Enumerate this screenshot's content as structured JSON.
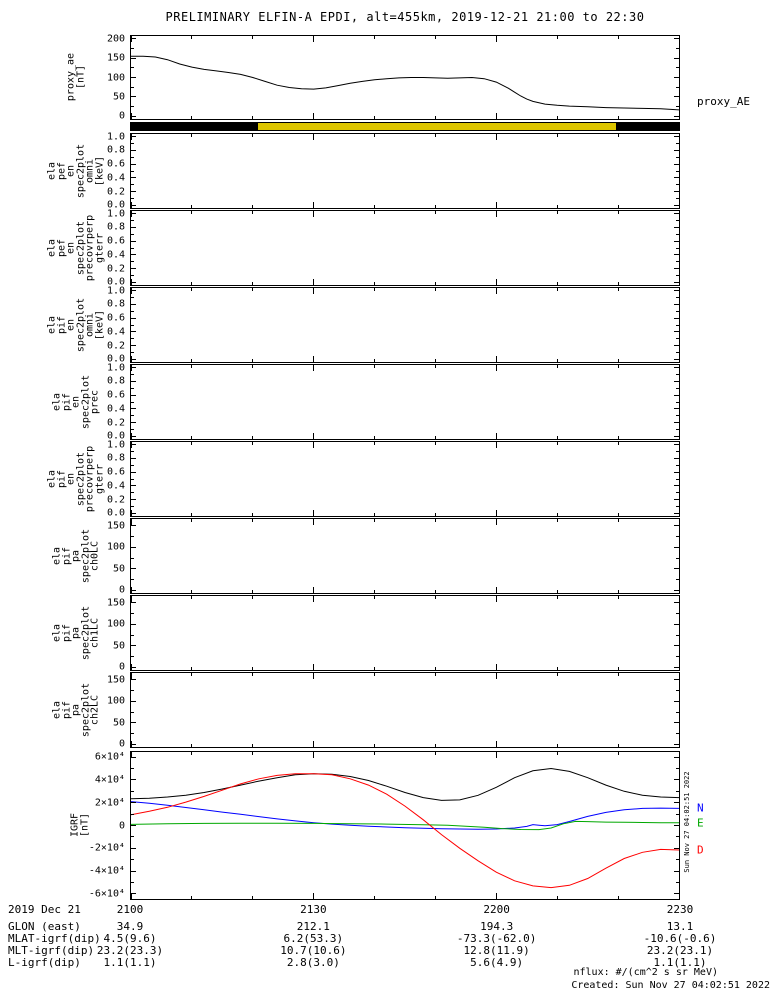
{
  "title": "PRELIMINARY ELFIN-A EPDI, alt=455km, 2019-12-21 21:00 to 22:30",
  "side_timestamp": "Sun Nov 27 04:02:51 2022",
  "colors": {
    "background": "#ffffff",
    "axis": "#000000",
    "survey_yellow": "#ddc500",
    "survey_black": "#000000",
    "proxy_line": "#000000",
    "igrf_total": "#000000",
    "igrf_n": "#0000ff",
    "igrf_e": "#00a800",
    "igrf_d": "#ff0000"
  },
  "xaxis": {
    "span_minutes": 90,
    "ticks": [
      {
        "label": "2100",
        "t": 0
      },
      {
        "label": "2130",
        "t": 30
      },
      {
        "label": "2200",
        "t": 60
      },
      {
        "label": "2230",
        "t": 90
      }
    ],
    "minor_t": [
      10,
      20,
      40,
      50,
      70,
      80
    ]
  },
  "panels": [
    {
      "name": "proxy_ae",
      "ylabel": "proxy_ae\n[nT]",
      "right_label": "proxy_AE",
      "yticks": [
        {
          "label": "200",
          "f": 0.965
        },
        {
          "label": "150",
          "f": 0.7325
        },
        {
          "label": "100",
          "f": 0.5
        },
        {
          "label": "50",
          "f": 0.2675
        },
        {
          "label": "0",
          "f": 0.035
        }
      ],
      "yminor": [
        0.849,
        0.616,
        0.384,
        0.151
      ]
    },
    {
      "name": "ela_pef_en_spec2plot_omni",
      "ylabel": "ela\npef\nen\nspec2plot\nomni\n[keV]",
      "yticks": [
        {
          "label": "1.0",
          "f": 0.965
        },
        {
          "label": "0.8",
          "f": 0.779
        },
        {
          "label": "0.6",
          "f": 0.593
        },
        {
          "label": "0.4",
          "f": 0.407
        },
        {
          "label": "0.2",
          "f": 0.221
        },
        {
          "label": "0.0",
          "f": 0.035
        }
      ],
      "yminor": [
        0.872,
        0.686,
        0.5,
        0.314,
        0.128
      ]
    },
    {
      "name": "ela_pef_en_spec2plot_precovrperp_gterr",
      "ylabel": "ela\npef\nen\nspec2plot\nprecovrperp\ngterr",
      "yticks": [
        {
          "label": "1.0",
          "f": 0.965
        },
        {
          "label": "0.8",
          "f": 0.779
        },
        {
          "label": "0.6",
          "f": 0.593
        },
        {
          "label": "0.4",
          "f": 0.407
        },
        {
          "label": "0.2",
          "f": 0.221
        },
        {
          "label": "0.0",
          "f": 0.035
        }
      ],
      "yminor": [
        0.872,
        0.686,
        0.5,
        0.314,
        0.128
      ]
    },
    {
      "name": "ela_pif_en_spec2plot_omni",
      "ylabel": "ela\npif\nen\nspec2plot\nomni\n[keV]",
      "yticks": [
        {
          "label": "1.0",
          "f": 0.965
        },
        {
          "label": "0.8",
          "f": 0.779
        },
        {
          "label": "0.6",
          "f": 0.593
        },
        {
          "label": "0.4",
          "f": 0.407
        },
        {
          "label": "0.2",
          "f": 0.221
        },
        {
          "label": "0.0",
          "f": 0.035
        }
      ],
      "yminor": [
        0.872,
        0.686,
        0.5,
        0.314,
        0.128
      ]
    },
    {
      "name": "ela_pif_en_spec2plot_prec",
      "ylabel": "ela\npif\nen\nspec2plot\nprec",
      "yticks": [
        {
          "label": "1.0",
          "f": 0.965
        },
        {
          "label": "0.8",
          "f": 0.779
        },
        {
          "label": "0.6",
          "f": 0.593
        },
        {
          "label": "0.4",
          "f": 0.407
        },
        {
          "label": "0.2",
          "f": 0.221
        },
        {
          "label": "0.0",
          "f": 0.035
        }
      ],
      "yminor": [
        0.872,
        0.686,
        0.5,
        0.314,
        0.128
      ]
    },
    {
      "name": "ela_pif_en_spec2plot_precovrperp_gterr",
      "ylabel": "ela\npif\nen\nspec2plot\nprecovrperp\ngterr",
      "yticks": [
        {
          "label": "1.0",
          "f": 0.965
        },
        {
          "label": "0.8",
          "f": 0.779
        },
        {
          "label": "0.6",
          "f": 0.593
        },
        {
          "label": "0.4",
          "f": 0.407
        },
        {
          "label": "0.2",
          "f": 0.221
        },
        {
          "label": "0.0",
          "f": 0.035
        }
      ],
      "yminor": [
        0.872,
        0.686,
        0.5,
        0.314,
        0.128
      ]
    },
    {
      "name": "ela_pif_pa_spec2plot_ch0LC",
      "ylabel": "ela\npif\npa\nspec2plot\nch0LC",
      "yticks": [
        {
          "label": "150",
          "f": 0.9068
        },
        {
          "label": "100",
          "f": 0.616
        },
        {
          "label": "50",
          "f": 0.3256
        },
        {
          "label": "0",
          "f": 0.035
        }
      ],
      "yminor": [
        0.762,
        0.471,
        0.18
      ]
    },
    {
      "name": "ela_pif_pa_spec2plot_ch1LC",
      "ylabel": "ela\npif\npa\nspec2plot\nch1LC",
      "yticks": [
        {
          "label": "150",
          "f": 0.9068
        },
        {
          "label": "100",
          "f": 0.616
        },
        {
          "label": "50",
          "f": 0.3256
        },
        {
          "label": "0",
          "f": 0.035
        }
      ],
      "yminor": [
        0.762,
        0.471,
        0.18
      ]
    },
    {
      "name": "ela_pif_pa_spec2plot_ch2LC",
      "ylabel": "ela\npif\npa\nspec2plot\nch2LC",
      "yticks": [
        {
          "label": "150",
          "f": 0.9068
        },
        {
          "label": "100",
          "f": 0.616
        },
        {
          "label": "50",
          "f": 0.3256
        },
        {
          "label": "0",
          "f": 0.035
        }
      ],
      "yminor": [
        0.762,
        0.471,
        0.18
      ]
    },
    {
      "name": "igrf",
      "ylabel": "IGRF\n[nT]",
      "yticks": [
        {
          "label": "6×10⁴",
          "f": 0.965
        },
        {
          "label": "4×10⁴",
          "f": 0.81
        },
        {
          "label": "2×10⁴",
          "f": 0.655
        },
        {
          "label": "0",
          "f": 0.5
        },
        {
          "label": "-2×10⁴",
          "f": 0.345
        },
        {
          "label": "-4×10⁴",
          "f": 0.19
        },
        {
          "label": "-6×10⁴",
          "f": 0.035
        }
      ],
      "yminor": [
        0.8875,
        0.7325,
        0.5775,
        0.4225,
        0.2675,
        0.1125
      ]
    }
  ],
  "chart_data": [
    {
      "type": "line",
      "name": "proxy_ae",
      "ylabel": "proxy_ae [nT]",
      "series_label": "proxy_AE",
      "ylim": [
        0,
        200
      ],
      "x_tick_labels": [
        "2100",
        "2130",
        "2200",
        "2230"
      ],
      "x_tick_minutes": [
        0,
        30,
        60,
        90
      ],
      "color": "#000000",
      "x_minutes": [
        0,
        2,
        4,
        6,
        8,
        10,
        12,
        14,
        16,
        18,
        20,
        22,
        24,
        26,
        28,
        30,
        32,
        34,
        36,
        38,
        40,
        42,
        44,
        46,
        48,
        50,
        52,
        54,
        56,
        58,
        60,
        61,
        62,
        63,
        64,
        65,
        66,
        68,
        70,
        72,
        75,
        78,
        81,
        84,
        87,
        89,
        90
      ],
      "values": [
        155,
        155,
        153,
        146,
        135,
        127,
        121,
        117,
        113,
        108,
        100,
        90,
        80,
        74,
        71,
        70,
        73,
        79,
        85,
        90,
        94,
        97,
        99,
        100,
        100,
        99,
        98,
        99,
        100,
        97,
        88,
        80,
        72,
        62,
        52,
        44,
        38,
        31,
        28,
        26,
        24,
        22,
        21,
        20,
        19,
        17,
        16
      ]
    },
    {
      "type": "segments",
      "name": "survey_mode_bar",
      "segments": [
        {
          "t0": 0,
          "t1": 20.8,
          "color": "#000000"
        },
        {
          "t0": 20.8,
          "t1": 79.7,
          "color": "#ddc500"
        },
        {
          "t0": 79.7,
          "t1": 90,
          "color": "#000000"
        }
      ]
    },
    {
      "type": "line",
      "name": "igrf",
      "ylabel": "IGRF [nT]",
      "ylim": [
        -60000,
        60000
      ],
      "legend": [
        "N",
        "E",
        "D"
      ],
      "series": [
        {
          "name": "B_total",
          "letter": "",
          "color": "#000000",
          "x": [
            0,
            3,
            6,
            9,
            12,
            15,
            18,
            21,
            24,
            27,
            30,
            33,
            36,
            39,
            42,
            45,
            48,
            51,
            54,
            57,
            60,
            63,
            66,
            69,
            72,
            75,
            78,
            81,
            84,
            87,
            90
          ],
          "y": [
            23500,
            24000,
            25000,
            26500,
            29000,
            32000,
            35500,
            39000,
            42000,
            44500,
            45500,
            45000,
            43000,
            39500,
            34500,
            29000,
            24500,
            22000,
            22500,
            26500,
            33500,
            42000,
            48000,
            50000,
            47500,
            42000,
            35500,
            30000,
            26500,
            25000,
            24500
          ]
        },
        {
          "name": "N",
          "letter": "N",
          "color": "#0000ff",
          "x": [
            0,
            3,
            6,
            9,
            12,
            15,
            18,
            21,
            24,
            27,
            30,
            33,
            36,
            39,
            42,
            45,
            48,
            51,
            54,
            57,
            60,
            63,
            65,
            66,
            67,
            68,
            70,
            72,
            75,
            78,
            81,
            84,
            87,
            90
          ],
          "y": [
            21000,
            19500,
            17800,
            15800,
            13800,
            11800,
            9800,
            7800,
            5800,
            4000,
            2500,
            1200,
            200,
            -600,
            -1300,
            -1900,
            -2400,
            -2800,
            -3100,
            -3300,
            -3100,
            -2200,
            -800,
            800,
            300,
            -200,
            800,
            3500,
            8000,
            11500,
            13800,
            15000,
            15300,
            15000
          ]
        },
        {
          "name": "E",
          "letter": "E",
          "color": "#00a800",
          "x": [
            0,
            6,
            12,
            18,
            24,
            30,
            36,
            42,
            48,
            52,
            55,
            58,
            61,
            64,
            67,
            69,
            71,
            73,
            75,
            78,
            81,
            84,
            87,
            90
          ],
          "y": [
            1000,
            1500,
            1800,
            2000,
            2000,
            1800,
            1500,
            1200,
            700,
            200,
            -600,
            -1600,
            -2700,
            -3500,
            -3600,
            -2200,
            1500,
            3600,
            3400,
            3000,
            2800,
            2600,
            2500,
            2500
          ]
        },
        {
          "name": "D",
          "letter": "D",
          "color": "#ff0000",
          "x": [
            0,
            3,
            6,
            9,
            12,
            15,
            18,
            21,
            24,
            27,
            30,
            33,
            36,
            39,
            42,
            45,
            48,
            51,
            54,
            57,
            60,
            63,
            66,
            69,
            72,
            75,
            78,
            81,
            84,
            87,
            90
          ],
          "y": [
            9500,
            12500,
            16000,
            20500,
            25500,
            31000,
            36500,
            41000,
            44000,
            45500,
            45500,
            44500,
            41000,
            35500,
            27500,
            17000,
            5000,
            -8000,
            -20000,
            -31000,
            -41000,
            -48500,
            -53000,
            -54500,
            -52500,
            -46500,
            -37500,
            -29000,
            -23500,
            -21000,
            -21500
          ]
        }
      ]
    }
  ],
  "footer": {
    "date_label": "2019 Dec 21",
    "rows": [
      {
        "label": "GLON (east)",
        "values": [
          "34.9",
          "212.1",
          "194.3",
          "13.1"
        ]
      },
      {
        "label": "MLAT-igrf(dip)",
        "values": [
          "4.5(9.6)",
          "6.2(53.3)",
          "-73.3(-62.0)",
          "-10.6(-0.6)"
        ]
      },
      {
        "label": "MLT-igrf(dip)",
        "values": [
          "23.2(23.3)",
          "10.7(10.6)",
          "12.8(11.9)",
          "23.2(23.1)"
        ]
      },
      {
        "label": "L-igrf(dip)",
        "values": [
          "1.1(1.1)",
          "2.8(3.0)",
          "5.6(4.9)",
          "1.1(1.1)"
        ]
      }
    ],
    "nflux_note": "nflux: #/(cm^2 s sr MeV)",
    "created": "Created: Sun Nov 27 04:02:51 2022"
  }
}
